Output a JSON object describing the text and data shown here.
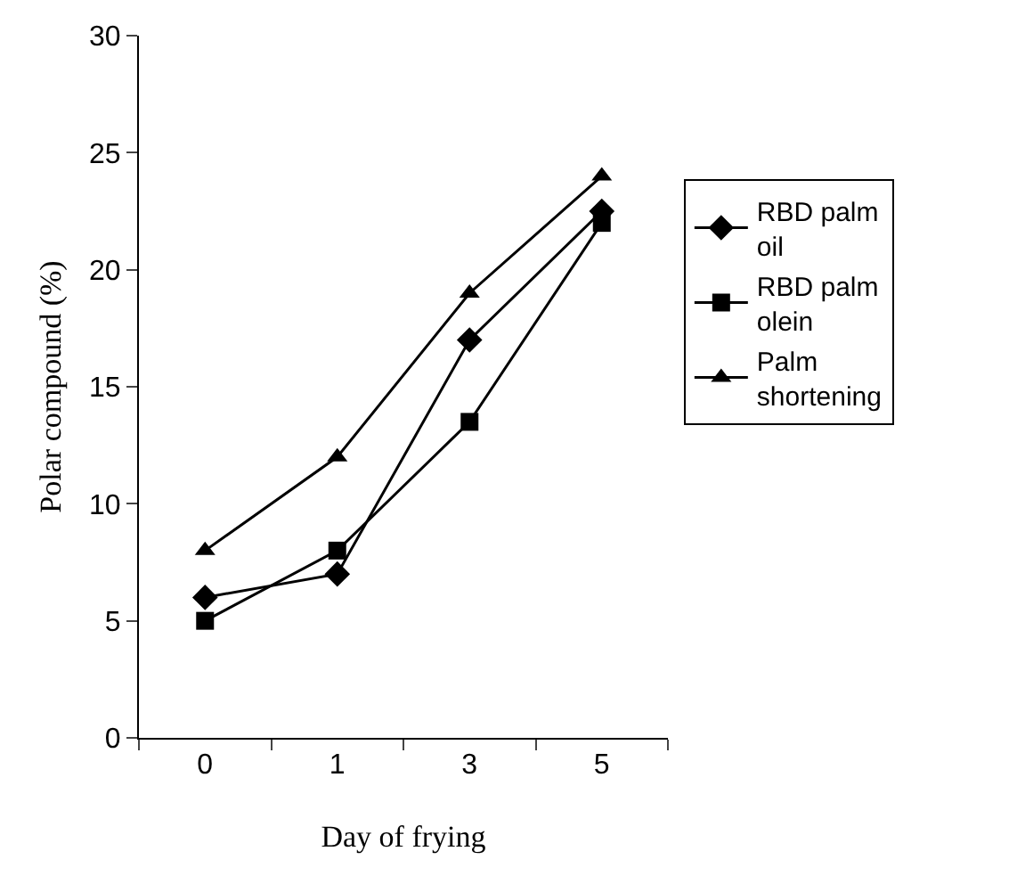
{
  "chart_data": {
    "type": "line",
    "xlabel": "Day of frying",
    "ylabel": "Polar compound (%)",
    "categories": [
      "0",
      "1",
      "3",
      "5"
    ],
    "series": [
      {
        "name": "RBD palm oil",
        "color": "#000000",
        "marker": "diamond",
        "values": [
          6,
          7,
          17,
          22.5
        ]
      },
      {
        "name": "RBD palm olein",
        "color": "#000000",
        "marker": "square",
        "values": [
          5,
          8,
          13.5,
          22
        ]
      },
      {
        "name": "Palm shortening",
        "color": "#000000",
        "marker": "triangle",
        "values": [
          8,
          12,
          19,
          24
        ]
      }
    ],
    "ylim": [
      0,
      30
    ],
    "yticks": [
      0,
      5,
      10,
      15,
      20,
      25,
      30
    ],
    "grid": false,
    "legend": "right",
    "line_style": "solid"
  }
}
